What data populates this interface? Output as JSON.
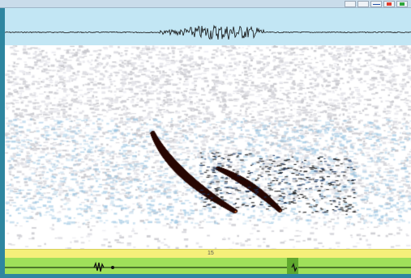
{
  "timeline": {
    "tick_label": "15"
  },
  "toolbar": {
    "tools": [
      "waveform-mini-icon",
      "scroll-icon",
      "zoom-line-icon",
      "play-icon",
      "stop-icon"
    ]
  },
  "colors": {
    "background": "#2e86a0",
    "waveform_bg": "#c2e6f4",
    "timeline_bg": "#f5ef7a",
    "overview_bg": "#9fe05a",
    "call_hot": "#ffd24a",
    "call_mid": "#e8561c",
    "call_dark": "#2a0a06"
  }
}
